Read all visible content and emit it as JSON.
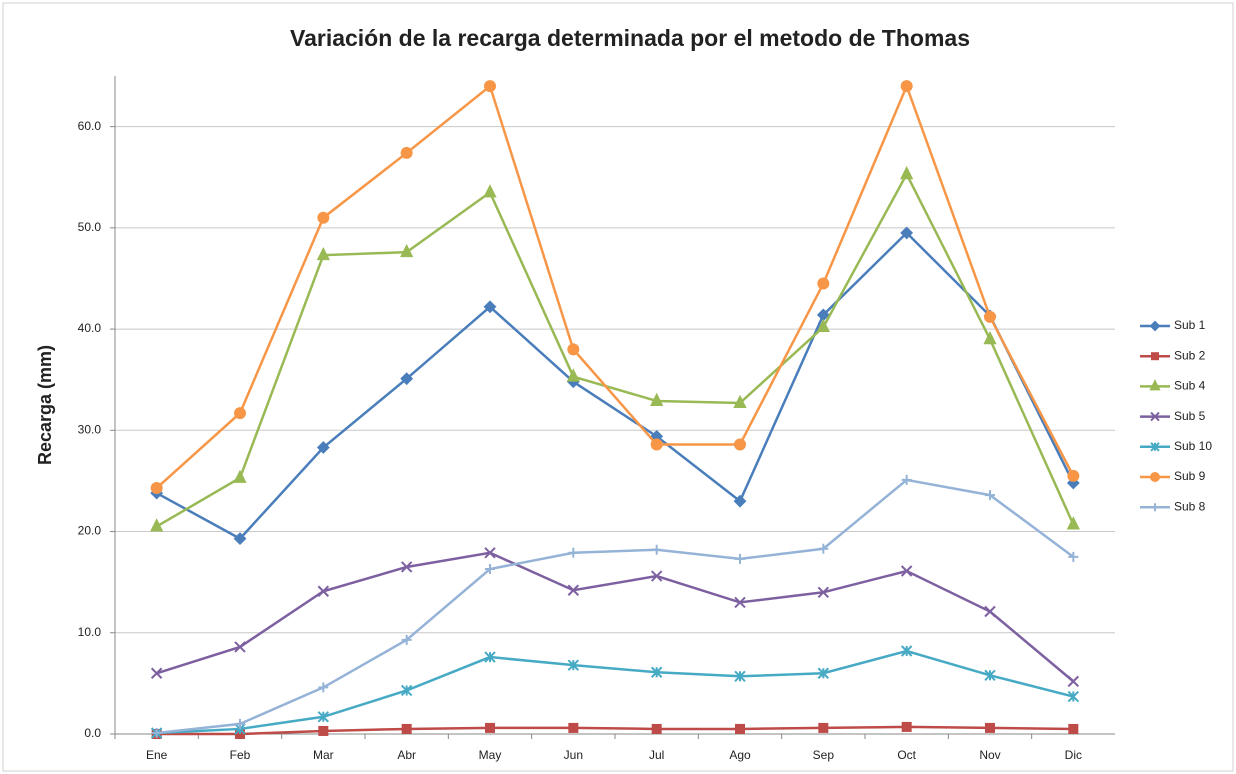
{
  "chart_data": {
    "type": "line",
    "title": "Variación de la recarga determinada por el metodo de Thomas",
    "y_label": "Recarga (mm)",
    "categories": [
      "Ene",
      "Feb",
      "Mar",
      "Abr",
      "May",
      "Jun",
      "Jul",
      "Ago",
      "Sep",
      "Oct",
      "Nov",
      "Dic"
    ],
    "ylim": [
      0,
      65
    ],
    "yticks": [
      {
        "value": 0,
        "label": "0.0"
      },
      {
        "value": 10,
        "label": "10.0"
      },
      {
        "value": 20,
        "label": "20.0"
      },
      {
        "value": 30,
        "label": "30.0"
      },
      {
        "value": 40,
        "label": "40.0"
      },
      {
        "value": 50,
        "label": "50.0"
      },
      {
        "value": 60,
        "label": "60.0"
      }
    ],
    "grid": true,
    "legend": "right",
    "series": [
      {
        "name": "Sub 1",
        "color": "#4a7ebb",
        "marker": "diamond",
        "values": [
          23.8,
          19.3,
          28.3,
          35.1,
          42.2,
          34.8,
          29.4,
          23.0,
          41.4,
          49.5,
          41.3,
          24.8
        ]
      },
      {
        "name": "Sub 2",
        "color": "#be4b48",
        "marker": "square",
        "values": [
          0.0,
          0.0,
          0.3,
          0.5,
          0.6,
          0.6,
          0.5,
          0.5,
          0.6,
          0.7,
          0.6,
          0.5
        ]
      },
      {
        "name": "Sub 4",
        "color": "#98b954",
        "marker": "triangle",
        "values": [
          20.5,
          25.3,
          47.3,
          47.6,
          53.5,
          35.3,
          32.9,
          32.7,
          40.2,
          55.3,
          39.0,
          20.7
        ]
      },
      {
        "name": "Sub 5",
        "color": "#7d60a0",
        "marker": "x",
        "values": [
          6.0,
          8.6,
          14.1,
          16.5,
          17.9,
          14.2,
          15.6,
          13.0,
          14.0,
          16.1,
          12.1,
          5.2
        ]
      },
      {
        "name": "Sub 10",
        "color": "#46aac5",
        "marker": "star",
        "values": [
          0.1,
          0.5,
          1.7,
          4.3,
          7.6,
          6.8,
          6.1,
          5.7,
          6.0,
          8.2,
          5.8,
          3.7
        ]
      },
      {
        "name": "Sub 9",
        "color": "#f79646",
        "marker": "circle",
        "values": [
          24.3,
          31.7,
          51.0,
          57.4,
          64.0,
          38.0,
          28.6,
          28.6,
          44.5,
          64.0,
          41.2,
          25.5
        ]
      },
      {
        "name": "Sub 8",
        "color": "#95b3d7",
        "marker": "plus",
        "values": [
          0.1,
          1.0,
          4.6,
          9.3,
          16.3,
          17.9,
          18.2,
          17.3,
          18.3,
          25.1,
          23.6,
          17.5
        ]
      }
    ]
  }
}
